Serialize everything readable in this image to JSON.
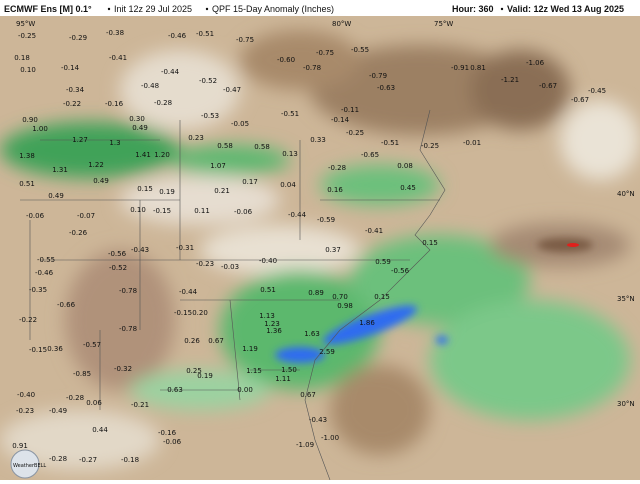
{
  "header": {
    "model": "ECMWF Ens [M] 0.1°",
    "init": "Init 12z 29 Jul 2025",
    "product": "QPF 15-Day Anomaly (Inches)",
    "hour": "Hour: 360",
    "valid": "Valid: 12z Wed 13 Aug 2025"
  },
  "grid_labels": {
    "lon": [
      "95°W",
      "80°W",
      "75°W"
    ],
    "lat": [
      "40°N",
      "35°N",
      "30°N"
    ]
  },
  "logo": "WeatherBELL",
  "map": {
    "values": [
      "-0.25",
      "-0.29",
      "-0.38",
      "-0.46",
      "-0.51",
      "-0.75",
      "0.18",
      "0.10",
      "-0.14",
      "-0.41",
      "-0.48",
      "-0.44",
      "-0.52",
      "-0.47",
      "-0.60",
      "-0.78",
      "-0.75",
      "-0.55",
      "-0.79",
      "-0.63",
      "-0.91",
      "0.81",
      "-1.21",
      "-1.06",
      "-0.67",
      "-0.67",
      "-0.45",
      "-0.34",
      "-0.22",
      "-0.16",
      "-0.28",
      "0.30",
      "0.49",
      "-0.53",
      "-0.05",
      "0.23",
      "0.90",
      "1.00",
      "1.27",
      "1.3",
      "1.41",
      "1.20",
      "0.58",
      "0.58",
      "0.13",
      "0.33",
      "1.38",
      "1.31",
      "1.22",
      "0.49",
      "1.07",
      "-0.51",
      "-0.11",
      "-0.14",
      "-0.25",
      "-0.51",
      "-0.65",
      "-0.25",
      "-0.01",
      "0.51",
      "0.49",
      "0.15",
      "0.19",
      "0.21",
      "0.17",
      "0.04",
      "-0.28",
      "0.16",
      "0.08",
      "0.45",
      "-0.06",
      "-0.07",
      "0.10",
      "-0.15",
      "0.11",
      "-0.06",
      "-0.44",
      "-0.59",
      "-0.41",
      "-0.26",
      "-0.31",
      "-0.55",
      "-0.56",
      "-0.43",
      "-0.46",
      "-0.52",
      "-0.23",
      "-0.03",
      "-0.40",
      "0.37",
      "0.59",
      "-0.56",
      "0.15",
      "-0.35",
      "-0.78",
      "-0.44",
      "0.51",
      "0.89",
      "0.70",
      "0.15",
      "-0.66",
      "-0.22",
      "-0.78",
      "-0.15",
      "0.20",
      "1.13",
      "1.23",
      "1.36",
      "1.63",
      "0.98",
      "1.86",
      "-0.15",
      "0.36",
      "-0.57",
      "0.26",
      "0.67",
      "1.19",
      "2.59",
      "-0.85",
      "-0.32",
      "0.25",
      "0.19",
      "1.15",
      "1.50",
      "1.11",
      "-0.40",
      "-0.28",
      "0.06",
      "-0.23",
      "-0.49",
      "-0.21",
      "0.63",
      "0.00",
      "0.67",
      "-0.43",
      "0.44",
      "-0.16",
      "-0.06",
      "-1.00",
      "-1.09",
      "0.91",
      "-0.28",
      "-0.27",
      "-0.18"
    ]
  }
}
